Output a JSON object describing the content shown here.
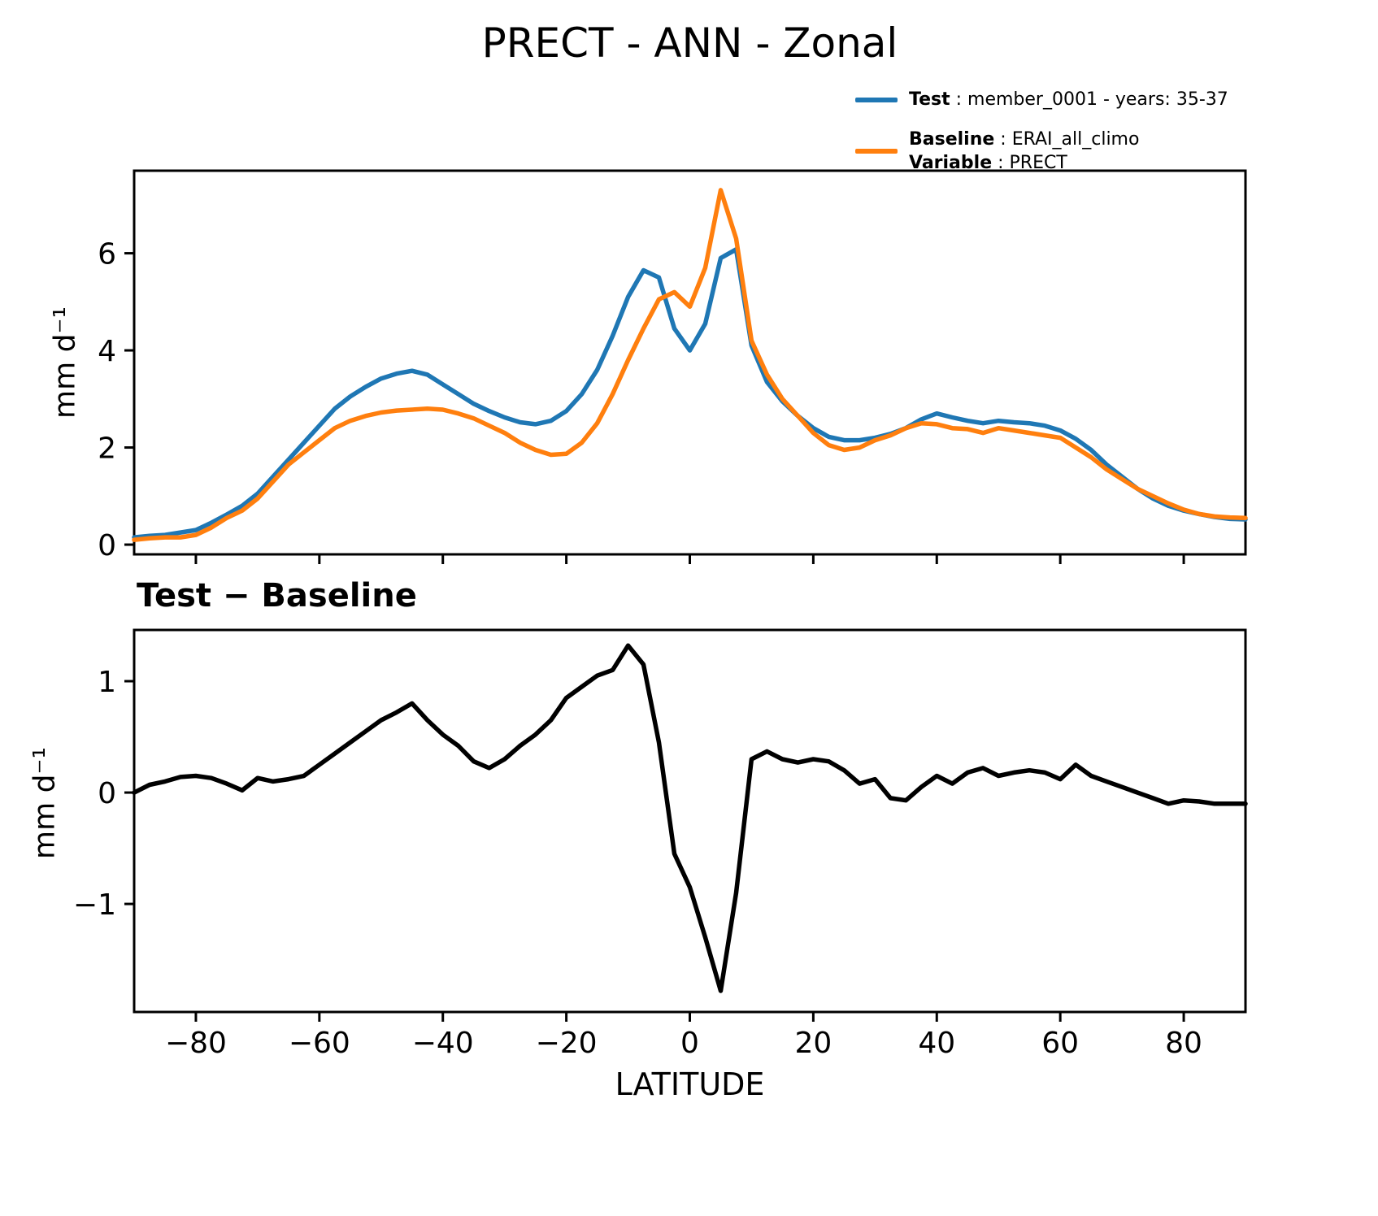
{
  "title": "PRECT - ANN - Zonal",
  "legend": {
    "test_bold": "Test",
    "test_rest": " : member_0001 - years: 35-37",
    "baseline_bold": "Baseline",
    "baseline_rest": " : ERAI_all_climo",
    "variable_bold": "Variable",
    "variable_rest": " : PRECT"
  },
  "colors": {
    "test": "#1f77b4",
    "baseline": "#ff7f0e",
    "diff": "#000000",
    "axes": "#000000"
  },
  "chart_data": [
    {
      "type": "line",
      "title": "PRECT - ANN - Zonal",
      "xlabel": "",
      "ylabel": "mm d⁻¹",
      "xlim": [
        -90,
        90
      ],
      "ylim": [
        -0.2,
        7.7
      ],
      "xticks": [
        -80,
        -60,
        -40,
        -20,
        0,
        20,
        40,
        60,
        80
      ],
      "xtick_labels": [
        "−80",
        "−60",
        "−40",
        "−20",
        "0",
        "20",
        "40",
        "60",
        "80"
      ],
      "yticks": [
        0,
        2,
        4,
        6
      ],
      "ytick_labels": [
        "0",
        "2",
        "4",
        "6"
      ],
      "grid": false,
      "legend_position": "upper right, outside axes",
      "x": [
        -90,
        -87.5,
        -85,
        -82.5,
        -80,
        -77.5,
        -75,
        -72.5,
        -70,
        -67.5,
        -65,
        -62.5,
        -60,
        -57.5,
        -55,
        -52.5,
        -50,
        -47.5,
        -45,
        -42.5,
        -40,
        -37.5,
        -35,
        -32.5,
        -30,
        -27.5,
        -25,
        -22.5,
        -20,
        -17.5,
        -15,
        -12.5,
        -10,
        -7.5,
        -5,
        -2.5,
        0,
        2.5,
        5,
        7.5,
        10,
        12.5,
        15,
        17.5,
        20,
        22.5,
        25,
        27.5,
        30,
        32.5,
        35,
        37.5,
        40,
        42.5,
        45,
        47.5,
        50,
        52.5,
        55,
        57.5,
        60,
        62.5,
        65,
        67.5,
        70,
        72.5,
        75,
        77.5,
        80,
        82.5,
        85,
        87.5,
        90
      ],
      "series": [
        {
          "name": "Test",
          "legend": "Test : member_0001 - years: 35-37",
          "color": "#1f77b4",
          "values": [
            0.15,
            0.18,
            0.2,
            0.25,
            0.3,
            0.45,
            0.62,
            0.8,
            1.05,
            1.4,
            1.75,
            2.1,
            2.45,
            2.8,
            3.05,
            3.25,
            3.42,
            3.52,
            3.58,
            3.5,
            3.3,
            3.1,
            2.9,
            2.75,
            2.62,
            2.52,
            2.48,
            2.55,
            2.75,
            3.1,
            3.6,
            4.3,
            5.1,
            5.65,
            5.5,
            4.45,
            4.0,
            4.55,
            5.9,
            6.08,
            4.1,
            3.35,
            2.95,
            2.65,
            2.4,
            2.22,
            2.15,
            2.15,
            2.2,
            2.28,
            2.4,
            2.58,
            2.7,
            2.62,
            2.55,
            2.5,
            2.55,
            2.52,
            2.5,
            2.45,
            2.35,
            2.18,
            1.95,
            1.65,
            1.4,
            1.15,
            0.95,
            0.8,
            0.7,
            0.63,
            0.57,
            0.53,
            0.52
          ]
        },
        {
          "name": "Baseline",
          "legend": "Baseline : ERAI_all_climo, Variable : PRECT",
          "color": "#ff7f0e",
          "values": [
            0.1,
            0.13,
            0.15,
            0.15,
            0.2,
            0.35,
            0.55,
            0.7,
            0.95,
            1.3,
            1.65,
            1.9,
            2.15,
            2.4,
            2.55,
            2.65,
            2.72,
            2.76,
            2.78,
            2.8,
            2.78,
            2.7,
            2.6,
            2.45,
            2.3,
            2.1,
            1.95,
            1.85,
            1.87,
            2.1,
            2.5,
            3.1,
            3.8,
            4.45,
            5.05,
            5.2,
            4.9,
            5.7,
            7.3,
            6.3,
            4.2,
            3.5,
            3.0,
            2.65,
            2.3,
            2.05,
            1.95,
            2.0,
            2.15,
            2.25,
            2.4,
            2.5,
            2.48,
            2.4,
            2.38,
            2.3,
            2.4,
            2.35,
            2.3,
            2.25,
            2.2,
            2.0,
            1.8,
            1.55,
            1.35,
            1.15,
            1.0,
            0.85,
            0.72,
            0.63,
            0.58,
            0.56,
            0.55
          ]
        }
      ]
    },
    {
      "type": "line",
      "title": "Test − Baseline",
      "xlabel": "LATITUDE",
      "ylabel": "mm d⁻¹",
      "xlim": [
        -90,
        90
      ],
      "ylim": [
        -1.97,
        1.46
      ],
      "xticks": [
        -80,
        -60,
        -40,
        -20,
        0,
        20,
        40,
        60,
        80
      ],
      "xtick_labels": [
        "−80",
        "−60",
        "−40",
        "−20",
        "0",
        "20",
        "40",
        "60",
        "80"
      ],
      "yticks": [
        -1,
        0,
        1
      ],
      "ytick_labels": [
        "−1",
        "0",
        "1"
      ],
      "grid": false,
      "x": [
        -90,
        -87.5,
        -85,
        -82.5,
        -80,
        -77.5,
        -75,
        -72.5,
        -70,
        -67.5,
        -65,
        -62.5,
        -60,
        -57.5,
        -55,
        -52.5,
        -50,
        -47.5,
        -45,
        -42.5,
        -40,
        -37.5,
        -35,
        -32.5,
        -30,
        -27.5,
        -25,
        -22.5,
        -20,
        -17.5,
        -15,
        -12.5,
        -10,
        -7.5,
        -5,
        -2.5,
        0,
        2.5,
        5,
        7.5,
        10,
        12.5,
        15,
        17.5,
        20,
        22.5,
        25,
        27.5,
        30,
        32.5,
        35,
        37.5,
        40,
        42.5,
        45,
        47.5,
        50,
        52.5,
        55,
        57.5,
        60,
        62.5,
        65,
        67.5,
        70,
        72.5,
        75,
        77.5,
        80,
        82.5,
        85,
        87.5,
        90
      ],
      "series": [
        {
          "name": "Test − Baseline",
          "color": "#000000",
          "values": [
            0.0,
            0.07,
            0.1,
            0.14,
            0.15,
            0.13,
            0.08,
            0.02,
            0.13,
            0.1,
            0.12,
            0.15,
            0.25,
            0.35,
            0.45,
            0.55,
            0.65,
            0.72,
            0.8,
            0.65,
            0.52,
            0.42,
            0.28,
            0.22,
            0.3,
            0.42,
            0.52,
            0.65,
            0.85,
            0.95,
            1.05,
            1.1,
            1.32,
            1.15,
            0.45,
            -0.55,
            -0.85,
            -1.3,
            -1.78,
            -0.9,
            0.3,
            0.37,
            0.3,
            0.27,
            0.3,
            0.28,
            0.2,
            0.08,
            0.12,
            -0.05,
            -0.07,
            0.05,
            0.15,
            0.08,
            0.18,
            0.22,
            0.15,
            0.18,
            0.2,
            0.18,
            0.12,
            0.25,
            0.15,
            0.1,
            0.05,
            0.0,
            -0.05,
            -0.1,
            -0.07,
            -0.08,
            -0.1,
            -0.1,
            -0.1
          ]
        }
      ]
    }
  ]
}
